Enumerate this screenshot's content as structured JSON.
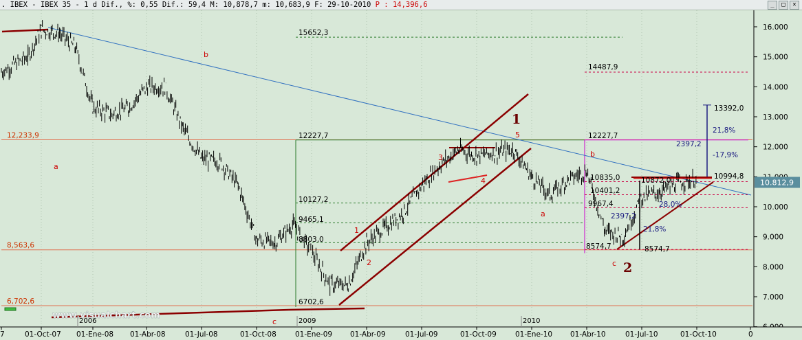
{
  "window": {
    "title_prefix": ". IBEX - IBEX 35 -  1 d Dif., %: 0,55 Dif.: 59,4 M: 10,878,7 m: 10,683,9 F: 29-10-2010 ",
    "title_last": "P : 14,396,6",
    "buttons": [
      "_",
      "□",
      "×"
    ]
  },
  "watermark": "www.visualchart.com",
  "chart_data": {
    "type": "line",
    "subtype": "ohlc-bars",
    "title": "IBEX 35",
    "ylim": [
      6000,
      16500
    ],
    "y_ticks": [
      {
        "v": 16000,
        "label": "16.000"
      },
      {
        "v": 15000,
        "label": "15.000"
      },
      {
        "v": 14000,
        "label": "14.000"
      },
      {
        "v": 13000,
        "label": "13.000"
      },
      {
        "v": 12000,
        "label": "12.000"
      },
      {
        "v": 11000,
        "label": "11.000"
      },
      {
        "v": 10000,
        "label": "10.000"
      },
      {
        "v": 9000,
        "label": "9.000"
      },
      {
        "v": 8000,
        "label": "8.000"
      },
      {
        "v": 7000,
        "label": "7.000"
      },
      {
        "v": 6000,
        "label": "6.000"
      }
    ],
    "x_ticks": [
      "7",
      "01-Oct-07",
      "01-Ene-08",
      "01-Abr-08",
      "01-Jul-08",
      "01-Oct-08",
      "01-Ene-09",
      "01-Abr-09",
      "01-Jul-09",
      "01-Oct-09",
      "01-Ene-10",
      "01-Abr-10",
      "01-Jul-10",
      "01-Oct-10",
      "0"
    ],
    "year_markers": [
      "2006",
      "2009",
      "2010"
    ],
    "last_price": "10.812,9",
    "series": [
      {
        "name": "IBEX 35",
        "color": "#000000",
        "x": [
          "2007-07",
          "2007-09",
          "2007-10",
          "2007-11",
          "2007-12",
          "2008-01",
          "2008-02",
          "2008-03",
          "2008-04",
          "2008-05",
          "2008-06",
          "2008-07",
          "2008-08",
          "2008-09",
          "2008-10",
          "2008-11",
          "2008-12",
          "2009-01",
          "2009-02",
          "2009-03",
          "2009-04",
          "2009-05",
          "2009-06",
          "2009-07",
          "2009-08",
          "2009-09",
          "2009-10",
          "2009-11",
          "2009-12",
          "2010-01",
          "2010-02",
          "2010-03",
          "2010-04",
          "2010-05",
          "2010-06",
          "2010-07",
          "2010-08",
          "2010-09",
          "2010-10"
        ],
        "y": [
          14500,
          15000,
          15900,
          15800,
          15300,
          13300,
          13100,
          13300,
          14000,
          14000,
          12600,
          11600,
          11500,
          10700,
          8900,
          8800,
          9400,
          8500,
          7400,
          7400,
          8800,
          9300,
          9800,
          10700,
          11400,
          11900,
          11700,
          11800,
          11900,
          11000,
          10400,
          10900,
          11200,
          9200,
          9000,
          10300,
          10500,
          10800,
          10900
        ]
      }
    ],
    "levels": [
      {
        "value": 12233.9,
        "label": "12,233,9",
        "color": "#e07050"
      },
      {
        "value": 8563.6,
        "label": "8,563,6",
        "color": "#e07050"
      },
      {
        "value": 6702.6,
        "label": "6,702,6",
        "color": "#e07050"
      }
    ],
    "annotations": {
      "wave_letters": [
        "a",
        "b",
        "c",
        "a",
        "b",
        "c"
      ],
      "wave_numbers": [
        "1",
        "2",
        "3",
        "4",
        "5"
      ],
      "major_waves": [
        "1",
        "2"
      ],
      "fib_levels": [
        "15652,3",
        "14487,9",
        "12227,7",
        "12227,7",
        "10127,2",
        "9465,1",
        "8803,0",
        "6702,6",
        "10835,0",
        "10401,2",
        "9967,4",
        "8574,7",
        "8574,7",
        "10872,0",
        "13392,0",
        "10994,8",
        "2397,2",
        "21,8%",
        "-17,9%",
        "28,0%",
        "21,8%",
        "2397,2"
      ]
    },
    "colors": {
      "price": "#000000",
      "trend_down": "#3070c0",
      "channel": "#8b0000",
      "fib": "#2a7a2a",
      "level": "#e07050",
      "magenta": "#cc00cc"
    }
  }
}
